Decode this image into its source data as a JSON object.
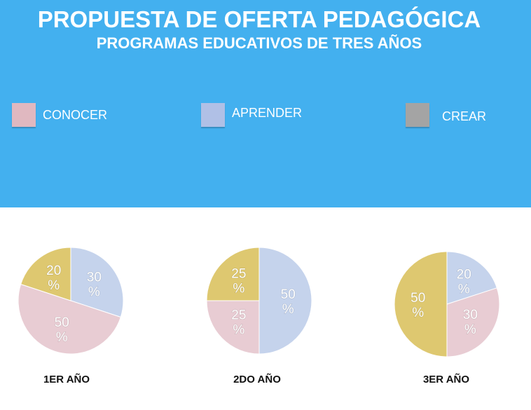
{
  "header": {
    "title": "PROPUESTA DE OFERTA PEDAGÓGICA",
    "subtitle": "PROGRAMAS EDUCATIVOS DE TRES AÑOS"
  },
  "legend": [
    {
      "label": "CONOCER",
      "color": "#e0b8c0"
    },
    {
      "label": "APRENDER",
      "color": "#b0c0e6"
    },
    {
      "label": "CREAR",
      "color": "#a4a4a4"
    }
  ],
  "chart_data": {
    "type": "pie",
    "slice_colors": {
      "APRENDER": "#c5d3ec",
      "CONOCER": "#e8ccd3",
      "CREAR": "#dec870"
    },
    "charts": [
      {
        "title": "1ER AÑO",
        "slices": [
          {
            "name": "APRENDER",
            "value": 30
          },
          {
            "name": "CONOCER",
            "value": 50
          },
          {
            "name": "CREAR",
            "value": 20
          }
        ]
      },
      {
        "title": "2DO AÑO",
        "slices": [
          {
            "name": "APRENDER",
            "value": 50
          },
          {
            "name": "CONOCER",
            "value": 25
          },
          {
            "name": "CREAR",
            "value": 25
          }
        ]
      },
      {
        "title": "3ER AÑO",
        "slices": [
          {
            "name": "APRENDER",
            "value": 20
          },
          {
            "name": "CONOCER",
            "value": 30
          },
          {
            "name": "CREAR",
            "value": 50
          }
        ]
      }
    ]
  }
}
